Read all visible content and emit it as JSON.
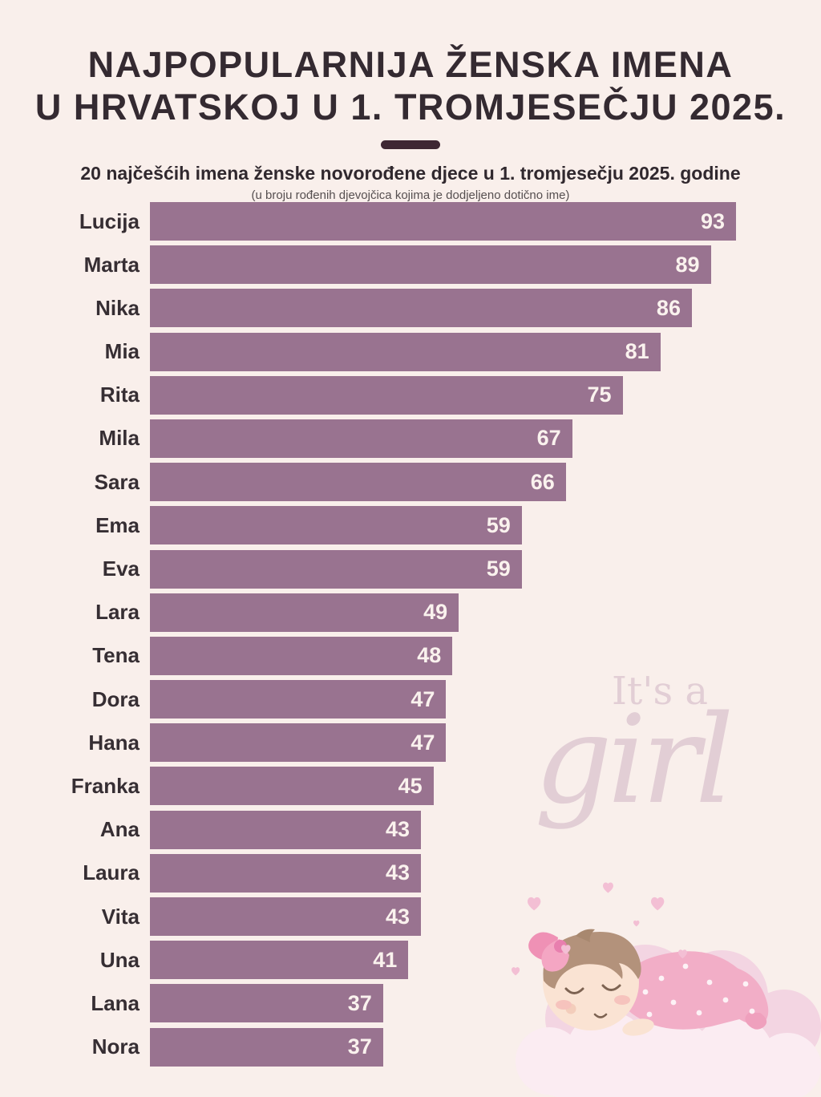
{
  "header": {
    "title_line1": "NAJPOPULARNIJA ŽENSKA IMENA",
    "title_line2": "U HRVATSKOJ U 1. TROMJESEČJU 2025.",
    "subtitle": "20 najčešćih imena ženske novorođene djece u 1. tromjesečju 2025. godine",
    "note": "(u broju rođenih djevojčica kojima je dodjeljeno dotično ime)"
  },
  "watermark": {
    "line1": "It's a",
    "line2": "girl"
  },
  "colors": {
    "background": "#f9efeb",
    "bar": "#997390",
    "title_text": "#342a31",
    "label_text": "#362e33",
    "value_label": "#faf2ee",
    "note_text": "#564f50",
    "divider": "#3e2733",
    "watermark_text": "#e2ced5"
  },
  "chart_data": {
    "type": "bar",
    "orientation": "horizontal",
    "title": "NAJPOPULARNIJA ŽENSKA IMENA U HRVATSKOJ U 1. TROMJESEČJU 2025.",
    "subtitle": "20 najčešćih imena ženske novorođene djece u 1. tromjesečju 2025. godine",
    "unit_note": "(u broju rođenih djevojčica kojima je dodjeljeno dotično ime)",
    "categories": [
      "Lucija",
      "Marta",
      "Nika",
      "Mia",
      "Rita",
      "Mila",
      "Sara",
      "Ema",
      "Eva",
      "Lara",
      "Tena",
      "Dora",
      "Hana",
      "Franka",
      "Ana",
      "Laura",
      "Vita",
      "Una",
      "Lana",
      "Nora"
    ],
    "values": [
      93,
      89,
      86,
      81,
      75,
      67,
      66,
      59,
      59,
      49,
      48,
      47,
      47,
      45,
      43,
      43,
      43,
      41,
      37,
      37
    ],
    "xlim": [
      0,
      93
    ],
    "value_labels": "inside-end",
    "grid": false,
    "legend": false
  }
}
